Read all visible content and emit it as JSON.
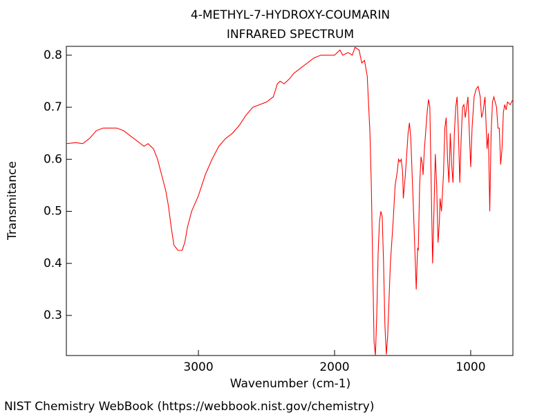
{
  "chart_data": {
    "type": "line",
    "title": "4-METHYL-7-HYDROXY-COUMARIN",
    "subtitle": "INFRARED SPECTRUM",
    "x_label": "Wavenumber (cm-1)",
    "y_label": "Transmitance",
    "footer": "NIST Chemistry WebBook (https://webbook.nist.gov/chemistry)",
    "color": "#ff0000",
    "xlim": [
      3970,
      690
    ],
    "ylim": [
      0.223,
      0.817
    ],
    "xticks": [
      3000,
      2000,
      1000
    ],
    "yticks": [
      0.3,
      0.4,
      0.5,
      0.6,
      0.7,
      0.8
    ],
    "x": [
      3970,
      3900,
      3850,
      3800,
      3750,
      3700,
      3600,
      3550,
      3500,
      3450,
      3400,
      3370,
      3330,
      3300,
      3270,
      3240,
      3220,
      3200,
      3180,
      3150,
      3120,
      3100,
      3080,
      3050,
      3000,
      2950,
      2900,
      2850,
      2800,
      2750,
      2700,
      2650,
      2600,
      2550,
      2500,
      2450,
      2420,
      2400,
      2370,
      2330,
      2300,
      2250,
      2200,
      2150,
      2100,
      2050,
      2000,
      1960,
      1940,
      1900,
      1870,
      1850,
      1820,
      1800,
      1780,
      1760,
      1740,
      1730,
      1720,
      1710,
      1700,
      1690,
      1680,
      1670,
      1660,
      1650,
      1640,
      1630,
      1620,
      1610,
      1600,
      1590,
      1570,
      1555,
      1540,
      1530,
      1520,
      1510,
      1500,
      1495,
      1480,
      1460,
      1450,
      1440,
      1420,
      1400,
      1390,
      1385,
      1375,
      1365,
      1355,
      1350,
      1340,
      1320,
      1310,
      1300,
      1290,
      1280,
      1270,
      1260,
      1250,
      1240,
      1230,
      1225,
      1215,
      1200,
      1190,
      1180,
      1170,
      1160,
      1150,
      1140,
      1130,
      1120,
      1110,
      1100,
      1090,
      1080,
      1070,
      1060,
      1050,
      1040,
      1030,
      1020,
      1010,
      1000,
      990,
      975,
      960,
      945,
      930,
      920,
      910,
      895,
      880,
      870,
      860,
      850,
      840,
      830,
      820,
      810,
      800,
      790,
      780,
      770,
      760,
      750,
      740,
      730,
      710,
      700,
      690
    ],
    "values": [
      0.63,
      0.632,
      0.63,
      0.64,
      0.655,
      0.66,
      0.66,
      0.655,
      0.645,
      0.635,
      0.625,
      0.63,
      0.62,
      0.6,
      0.57,
      0.54,
      0.51,
      0.47,
      0.435,
      0.425,
      0.425,
      0.44,
      0.47,
      0.5,
      0.53,
      0.57,
      0.6,
      0.625,
      0.64,
      0.65,
      0.665,
      0.685,
      0.7,
      0.705,
      0.71,
      0.72,
      0.745,
      0.75,
      0.745,
      0.755,
      0.765,
      0.775,
      0.785,
      0.795,
      0.8,
      0.8,
      0.8,
      0.81,
      0.8,
      0.805,
      0.8,
      0.815,
      0.81,
      0.785,
      0.79,
      0.76,
      0.65,
      0.55,
      0.4,
      0.25,
      0.223,
      0.3,
      0.42,
      0.48,
      0.5,
      0.49,
      0.4,
      0.28,
      0.225,
      0.26,
      0.33,
      0.4,
      0.48,
      0.55,
      0.575,
      0.6,
      0.595,
      0.6,
      0.575,
      0.525,
      0.57,
      0.65,
      0.67,
      0.64,
      0.5,
      0.35,
      0.43,
      0.425,
      0.55,
      0.605,
      0.59,
      0.57,
      0.62,
      0.69,
      0.715,
      0.7,
      0.55,
      0.4,
      0.5,
      0.61,
      0.55,
      0.44,
      0.48,
      0.525,
      0.5,
      0.57,
      0.66,
      0.68,
      0.6,
      0.555,
      0.65,
      0.59,
      0.555,
      0.65,
      0.7,
      0.72,
      0.65,
      0.555,
      0.64,
      0.7,
      0.705,
      0.68,
      0.7,
      0.72,
      0.65,
      0.585,
      0.66,
      0.72,
      0.735,
      0.74,
      0.72,
      0.68,
      0.69,
      0.72,
      0.62,
      0.65,
      0.5,
      0.65,
      0.71,
      0.72,
      0.71,
      0.7,
      0.66,
      0.66,
      0.59,
      0.62,
      0.69,
      0.705,
      0.695,
      0.71,
      0.705,
      0.71,
      0.715
    ]
  }
}
